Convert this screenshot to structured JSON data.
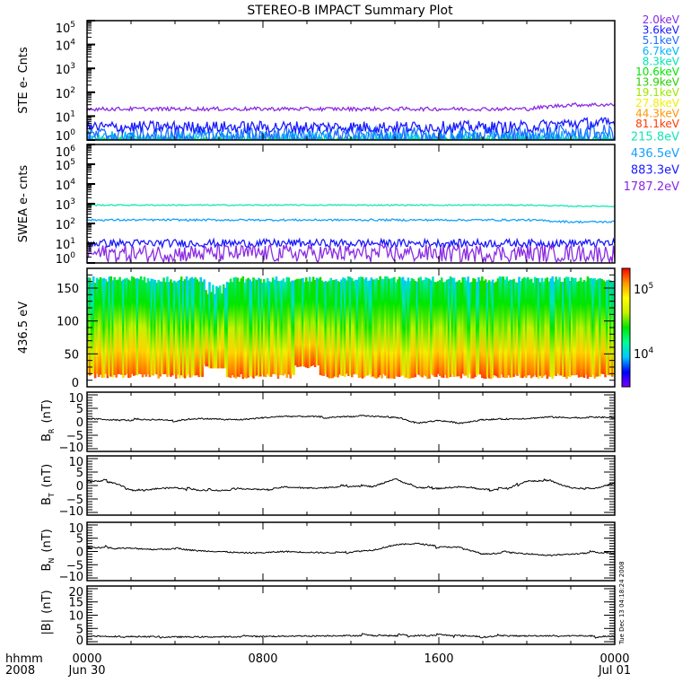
{
  "title": "STEREO-B IMPACT Summary Plot",
  "timestamp": "Tue Dec 13 04:18:24 2008",
  "x_axis": {
    "row_labels": [
      "hhmm",
      "2008"
    ],
    "ticks": [
      {
        "hour": 0,
        "time": "0000",
        "date": "Jun 30"
      },
      {
        "hour": 8,
        "time": "0800",
        "date": ""
      },
      {
        "hour": 16,
        "time": "1600",
        "date": ""
      },
      {
        "hour": 24,
        "time": "0000",
        "date": "Jul 01"
      }
    ],
    "range_hours": [
      0,
      24
    ]
  },
  "chart_data": [
    {
      "type": "line",
      "name": "ste",
      "ylabel": "STE e- Cnts",
      "yscale": "log",
      "ylim": [
        1,
        100000
      ],
      "yticks": [
        {
          "base": "10",
          "exp": "0"
        },
        {
          "base": "10",
          "exp": "1"
        },
        {
          "base": "10",
          "exp": "2"
        },
        {
          "base": "10",
          "exp": "3"
        },
        {
          "base": "10",
          "exp": "4"
        },
        {
          "base": "10",
          "exp": "5"
        }
      ],
      "series": [
        {
          "name": "2.0keV",
          "color": "#8a2be2",
          "level": 20,
          "late_level": 30,
          "noise": 0.08
        },
        {
          "name": "3.6keV",
          "color": "#1a1aff",
          "level": 3.5,
          "late_level": 5,
          "noise": 0.25
        },
        {
          "name": "5.1keV",
          "color": "#1e6fff",
          "level": 1.6,
          "late_level": 2,
          "noise": 0.35
        },
        {
          "name": "6.7keV",
          "color": "#00b4ff",
          "level": 1.2,
          "late_level": 1.3,
          "noise": 0.3
        },
        {
          "name": "8.3keV",
          "color": "#00e6b4",
          "level": 1.0,
          "late_level": 1.0,
          "noise": 0.2
        },
        {
          "name": "10.6keV",
          "color": "#00e600",
          "level": 1.0,
          "late_level": 1.0,
          "noise": 0.1
        },
        {
          "name": "13.9keV",
          "color": "#28d200",
          "level": 1.0,
          "late_level": 1.0,
          "noise": 0.05
        },
        {
          "name": "19.1keV",
          "color": "#a0e600",
          "level": 1.0,
          "late_level": 1.0,
          "noise": 0.02
        },
        {
          "name": "27.8keV",
          "color": "#f0f000",
          "level": 1.0,
          "late_level": 1.0,
          "noise": 0.0
        },
        {
          "name": "44.3keV",
          "color": "#ff9600",
          "level": 1.0,
          "late_level": 1.0,
          "noise": 0.0
        },
        {
          "name": "81.1keV",
          "color": "#ff3c00",
          "level": 1.0,
          "late_level": 1.0,
          "noise": 0.0
        }
      ]
    },
    {
      "type": "line",
      "name": "swea",
      "ylabel": "SWEA e- cnts",
      "yscale": "log",
      "ylim": [
        1,
        1000000
      ],
      "yticks": [
        {
          "base": "10",
          "exp": "0"
        },
        {
          "base": "10",
          "exp": "1"
        },
        {
          "base": "10",
          "exp": "2"
        },
        {
          "base": "10",
          "exp": "3"
        },
        {
          "base": "10",
          "exp": "4"
        },
        {
          "base": "10",
          "exp": "5"
        },
        {
          "base": "10",
          "exp": "6"
        }
      ],
      "series": [
        {
          "name": "1787.2eV",
          "color": "#8a2be2",
          "level": 3,
          "late_level": 3,
          "noise": 0.45
        },
        {
          "name": "883.3eV",
          "color": "#1a1aff",
          "level": 10,
          "late_level": 10,
          "noise": 0.2
        },
        {
          "name": "436.5eV",
          "color": "#14a0ff",
          "level": 150,
          "late_level": 120,
          "noise": 0.05
        },
        {
          "name": "215.8eV",
          "color": "#14e6b4",
          "level": 850,
          "late_level": 750,
          "noise": 0.03
        }
      ]
    },
    {
      "type": "heatmap",
      "name": "pad",
      "ylabel": "436.5 eV",
      "ylim": [
        0,
        180
      ],
      "yticks": [
        "0",
        "50",
        "100",
        "150"
      ],
      "ytick_values": [
        0,
        50,
        100,
        150
      ],
      "y_range_filled": [
        12,
        168
      ],
      "colorbar": {
        "scale": "log",
        "range": [
          3000,
          200000
        ],
        "ticks": [
          {
            "base": "10",
            "exp": "4",
            "value": 10000
          },
          {
            "base": "10",
            "exp": "5",
            "value": 100000
          }
        ]
      }
    },
    {
      "type": "line",
      "name": "br",
      "ylabel_main": "B",
      "ylabel_sub": "R",
      "ylabel_unit": "(nT)",
      "ylim": [
        -11,
        11
      ],
      "yticks": [
        "10",
        "5",
        "0",
        "−5",
        "−10"
      ],
      "ytick_values": [
        10,
        5,
        0,
        -5,
        -10
      ],
      "x_hours": [
        0,
        1,
        2,
        3,
        4,
        5,
        6,
        7,
        8,
        9,
        10,
        11,
        12,
        13,
        14,
        15,
        16,
        17,
        18,
        19,
        20,
        21,
        22,
        23,
        24
      ],
      "values": [
        1.2,
        0.8,
        0.5,
        0.8,
        0.6,
        1.2,
        1.0,
        0.8,
        1.5,
        2.0,
        2.0,
        1.8,
        2.0,
        2.0,
        1.8,
        -0.5,
        0.5,
        -0.5,
        0.8,
        1.0,
        1.2,
        1.8,
        1.5,
        1.8,
        1.5
      ],
      "color": "#000000"
    },
    {
      "type": "line",
      "name": "bt",
      "ylabel_main": "B",
      "ylabel_sub": "T",
      "ylabel_unit": "(nT)",
      "ylim": [
        -11,
        11
      ],
      "yticks": [
        "10",
        "5",
        "0",
        "−5",
        "−10"
      ],
      "ytick_values": [
        10,
        5,
        0,
        -5,
        -10
      ],
      "x_hours": [
        0,
        1,
        2,
        3,
        4,
        5,
        6,
        7,
        8,
        9,
        10,
        11,
        12,
        13,
        14,
        15,
        16,
        17,
        18,
        19,
        20,
        21,
        22,
        23,
        24
      ],
      "values": [
        1.5,
        1.8,
        -1.5,
        -1.2,
        -0.8,
        -1.8,
        -2.0,
        -1.2,
        -1.5,
        -0.5,
        -1.0,
        -0.8,
        0.0,
        -0.5,
        2.5,
        -0.8,
        -1.0,
        -0.5,
        -1.5,
        -1.2,
        1.8,
        1.5,
        -0.8,
        -1.5,
        1.0
      ],
      "color": "#000000"
    },
    {
      "type": "line",
      "name": "bn",
      "ylabel_main": "B",
      "ylabel_sub": "N",
      "ylabel_unit": "(nT)",
      "ylim": [
        -11,
        11
      ],
      "yticks": [
        "10",
        "5",
        "0",
        "−5",
        "−10"
      ],
      "ytick_values": [
        10,
        5,
        0,
        -5,
        -10
      ],
      "x_hours": [
        0,
        1,
        2,
        3,
        4,
        5,
        6,
        7,
        8,
        9,
        10,
        11,
        12,
        13,
        14,
        15,
        16,
        17,
        18,
        19,
        20,
        21,
        22,
        23,
        24
      ],
      "values": [
        1.5,
        1.5,
        1.2,
        0.8,
        1.0,
        0.3,
        0.0,
        -0.5,
        -0.5,
        0.0,
        -0.3,
        -0.5,
        0.0,
        0.5,
        2.5,
        3.0,
        2.0,
        1.5,
        -1.0,
        -0.5,
        -0.8,
        -1.5,
        -1.0,
        -0.5,
        -0.5
      ],
      "color": "#000000"
    },
    {
      "type": "line",
      "name": "bmag",
      "ylabel_main": "|B|",
      "ylabel_sub": "",
      "ylabel_unit": "(nT)",
      "ylim": [
        -1,
        21
      ],
      "yticks": [
        "20",
        "15",
        "10",
        "5",
        "0"
      ],
      "ytick_values": [
        20,
        15,
        10,
        5,
        0
      ],
      "x_hours": [
        0,
        2,
        4,
        6,
        8,
        10,
        12,
        14,
        16,
        18,
        20,
        22,
        24
      ],
      "values": [
        2.0,
        2.0,
        1.8,
        1.8,
        2.0,
        2.2,
        2.3,
        2.2,
        2.5,
        2.0,
        2.2,
        2.3,
        2.0
      ],
      "color": "#000000"
    }
  ]
}
